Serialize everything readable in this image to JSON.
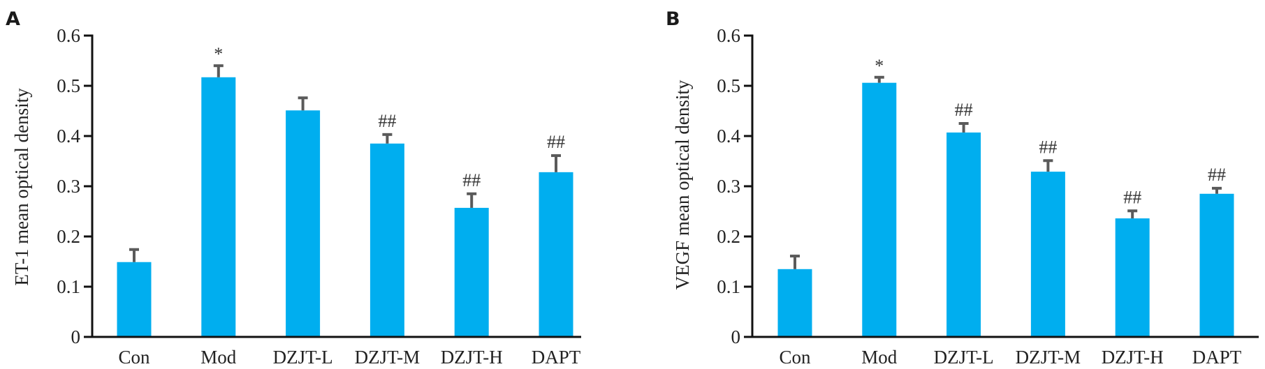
{
  "chart_data": [
    {
      "type": "bar",
      "panel": "A",
      "title": "",
      "xlabel": "",
      "ylabel": "ET-1 mean optical density",
      "ylim": [
        0,
        0.6
      ],
      "yticks": [
        "0",
        "0.1",
        "0.2",
        "0.3",
        "0.4",
        "0.5",
        "0.6"
      ],
      "ytick_values": [
        0,
        0.1,
        0.2,
        0.3,
        0.4,
        0.5,
        0.6
      ],
      "grid": false,
      "categories": [
        "Con",
        "Mod",
        "DZJT-L",
        "DZJT-M",
        "DZJT-H",
        "DAPT"
      ],
      "values": [
        0.149,
        0.517,
        0.451,
        0.385,
        0.257,
        0.328
      ],
      "error_upper": [
        0.174,
        0.54,
        0.476,
        0.403,
        0.285,
        0.361
      ],
      "annotations": [
        "",
        "*",
        "",
        "##",
        "##",
        "##"
      ],
      "bar_color": "#00AEEF",
      "error_color": "#5A5A5A"
    },
    {
      "type": "bar",
      "panel": "B",
      "title": "",
      "xlabel": "",
      "ylabel": "VEGF mean optical density",
      "ylim": [
        0,
        0.6
      ],
      "yticks": [
        "0",
        "0.1",
        "0.2",
        "0.3",
        "0.4",
        "0.5",
        "0.6"
      ],
      "ytick_values": [
        0,
        0.1,
        0.2,
        0.3,
        0.4,
        0.5,
        0.6
      ],
      "grid": false,
      "categories": [
        "Con",
        "Mod",
        "DZJT-L",
        "DZJT-M",
        "DZJT-H",
        "DAPT"
      ],
      "values": [
        0.135,
        0.506,
        0.407,
        0.329,
        0.236,
        0.285
      ],
      "error_upper": [
        0.161,
        0.517,
        0.425,
        0.351,
        0.251,
        0.296
      ],
      "annotations": [
        "",
        "*",
        "##",
        "##",
        "##",
        "##"
      ],
      "bar_color": "#00AEEF",
      "error_color": "#5A5A5A"
    }
  ]
}
